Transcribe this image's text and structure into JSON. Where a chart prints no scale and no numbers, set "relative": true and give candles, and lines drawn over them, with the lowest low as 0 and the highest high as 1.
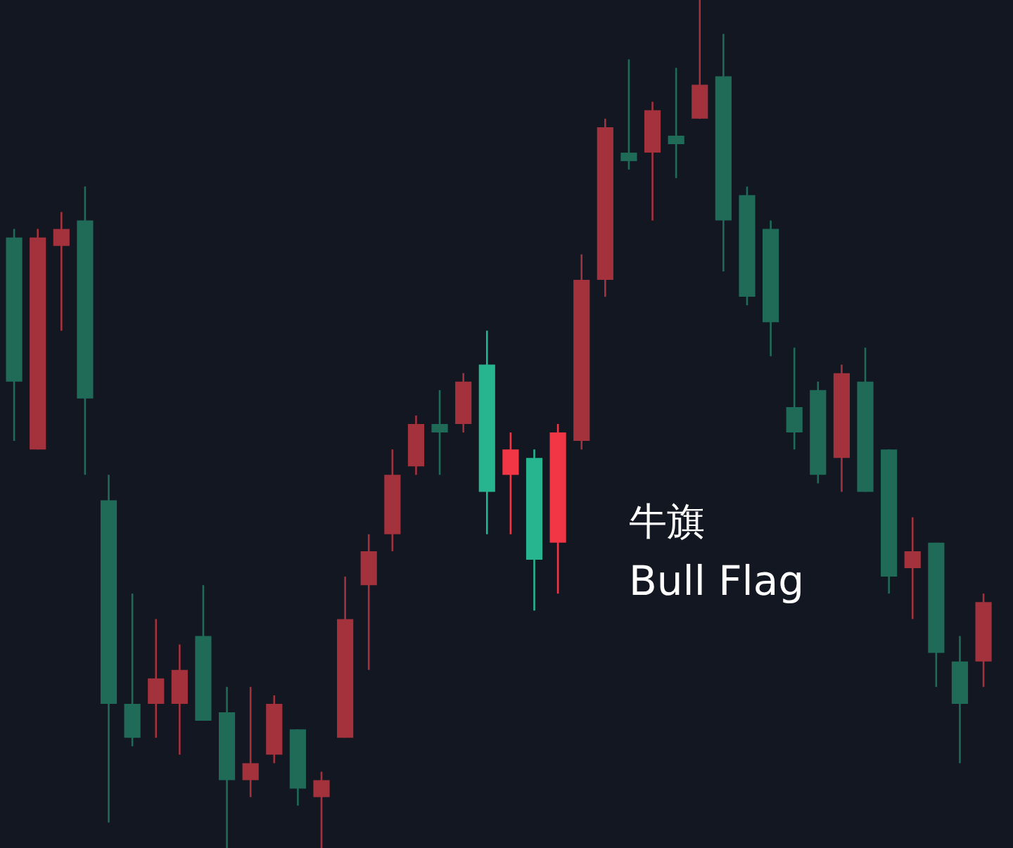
{
  "chart_data": {
    "type": "candlestick",
    "relative": true,
    "categories": [
      null,
      null,
      null,
      null,
      null,
      null,
      null,
      null,
      null,
      null,
      null,
      null,
      null,
      null,
      null,
      null,
      null,
      null,
      null,
      null,
      null,
      null,
      null,
      null,
      null,
      null,
      null,
      null,
      null,
      null,
      null,
      null,
      null,
      null,
      null,
      null,
      null,
      null,
      null,
      null,
      null,
      null
    ],
    "ohlc": [
      [
        0.72,
        0.73,
        0.48,
        0.55
      ],
      [
        0.47,
        0.73,
        0.47,
        0.72
      ],
      [
        0.71,
        0.75,
        0.61,
        0.73
      ],
      [
        0.74,
        0.78,
        0.44,
        0.53
      ],
      [
        0.41,
        0.44,
        0.03,
        0.17
      ],
      [
        0.17,
        0.3,
        0.12,
        0.13
      ],
      [
        0.17,
        0.27,
        0.13,
        0.2
      ],
      [
        0.17,
        0.24,
        0.11,
        0.21
      ],
      [
        0.25,
        0.31,
        0.15,
        0.15
      ],
      [
        0.16,
        0.19,
        0,
        0.08
      ],
      [
        0.08,
        0.19,
        0.06,
        0.1
      ],
      [
        0.11,
        0.18,
        0.1,
        0.17
      ],
      [
        0.14,
        0.14,
        0.05,
        0.07
      ],
      [
        0.06,
        0.09,
        0,
        0.08
      ],
      [
        0.13,
        0.32,
        0.13,
        0.27
      ],
      [
        0.31,
        0.37,
        0.21,
        0.35
      ],
      [
        0.37,
        0.47,
        0.35,
        0.44
      ],
      [
        0.45,
        0.51,
        0.44,
        0.5
      ],
      [
        0.5,
        0.54,
        0.44,
        0.49
      ],
      [
        0.5,
        0.56,
        0.49,
        0.55
      ],
      [
        0.57,
        0.61,
        0.37,
        0.42
      ],
      [
        0.44,
        0.49,
        0.37,
        0.47
      ],
      [
        0.46,
        0.47,
        0.28,
        0.34
      ],
      [
        0.36,
        0.5,
        0.3,
        0.49
      ],
      [
        0.48,
        0.7,
        0.47,
        0.67
      ],
      [
        0.67,
        0.86,
        0.65,
        0.85
      ],
      [
        0.82,
        0.93,
        0.8,
        0.81
      ],
      [
        0.82,
        0.88,
        0.74,
        0.87
      ],
      [
        0.84,
        0.92,
        0.79,
        0.83
      ],
      [
        0.86,
        1.0,
        0.86,
        0.9
      ],
      [
        0.91,
        0.96,
        0.68,
        0.74
      ],
      [
        0.77,
        0.78,
        0.64,
        0.65
      ],
      [
        0.73,
        0.74,
        0.58,
        0.62
      ],
      [
        0.52,
        0.59,
        0.47,
        0.49
      ],
      [
        0.54,
        0.55,
        0.43,
        0.44
      ],
      [
        0.46,
        0.57,
        0.42,
        0.56
      ],
      [
        0.55,
        0.59,
        0.42,
        0.42
      ],
      [
        0.47,
        0.47,
        0.3,
        0.32
      ],
      [
        0.33,
        0.39,
        0.27,
        0.35
      ],
      [
        0.36,
        0.36,
        0.19,
        0.23
      ],
      [
        0.22,
        0.25,
        0.1,
        0.17
      ],
      [
        0.22,
        0.3,
        0.19,
        0.29
      ]
    ],
    "colors": [
      "#1f6b58",
      "#a3323c",
      "#a3323c",
      "#1f6b58",
      "#1f6b58",
      "#1f6b58",
      "#a3323c",
      "#a3323c",
      "#1f6b58",
      "#1f6b58",
      "#a3323c",
      "#a3323c",
      "#1f6b58",
      "#a3323c",
      "#a3323c",
      "#a3323c",
      "#a3323c",
      "#a3323c",
      "#1f6b58",
      "#a3323c",
      "#26b58f",
      "#f23645",
      "#26b58f",
      "#f23645",
      "#a3323c",
      "#a3323c",
      "#1f6b58",
      "#a3323c",
      "#1f6b58",
      "#a3323c",
      "#1f6b58",
      "#1f6b58",
      "#1f6b58",
      "#1f6b58",
      "#1f6b58",
      "#a3323c",
      "#1f6b58",
      "#1f6b58",
      "#a3323c",
      "#1f6b58",
      "#1f6b58",
      "#a3323c"
    ],
    "annotations": [
      "牛旗",
      "Bull Flag"
    ]
  }
}
